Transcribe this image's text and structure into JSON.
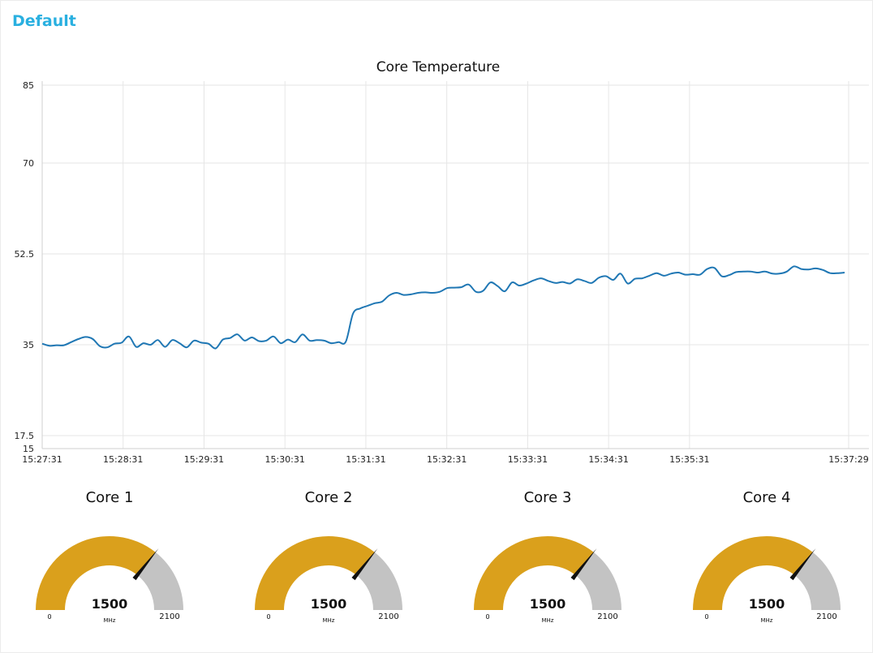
{
  "group": {
    "title": "Default"
  },
  "chart_data": {
    "type": "line",
    "title": "Core Temperature",
    "ylim": [
      15,
      85
    ],
    "yticks": [
      15,
      17.5,
      35,
      52.5,
      70,
      85
    ],
    "xticks": [
      "15:27:31",
      "15:28:31",
      "15:29:31",
      "15:30:31",
      "15:31:31",
      "15:32:31",
      "15:33:31",
      "15:34:31",
      "15:35:31",
      "15:37:29"
    ],
    "x_start": "15:27:31",
    "x_end": "15:37:29",
    "grid": true,
    "color": "#1f77b4",
    "series": [
      {
        "values": [
          35.2,
          34.8,
          34.9,
          34.9,
          35.5,
          36.1,
          36.5,
          36.1,
          34.7,
          34.5,
          35.2,
          35.4,
          36.6,
          34.6,
          35.3,
          35.0,
          35.9,
          34.6,
          35.9,
          35.3,
          34.5,
          35.8,
          35.4,
          35.2,
          34.3,
          36.0,
          36.3,
          37.0,
          35.8,
          36.4,
          35.7,
          35.8,
          36.6,
          35.3,
          36.0,
          35.5,
          37.0,
          35.8,
          35.9,
          35.8,
          35.3,
          35.5,
          35.6,
          41.0,
          42.0,
          42.5,
          43.0,
          43.3,
          44.5,
          45.0,
          44.6,
          44.7,
          45.0,
          45.1,
          45.0,
          45.2,
          45.9,
          46.0,
          46.1,
          46.6,
          45.2,
          45.4,
          47.0,
          46.3,
          45.3,
          47.0,
          46.4,
          46.8,
          47.4,
          47.8,
          47.3,
          46.9,
          47.1,
          46.8,
          47.6,
          47.3,
          46.9,
          47.9,
          48.2,
          47.5,
          48.7,
          46.8,
          47.7,
          47.8,
          48.3,
          48.8,
          48.3,
          48.7,
          48.9,
          48.5,
          48.6,
          48.5,
          49.6,
          49.8,
          48.2,
          48.4,
          49.0,
          49.1,
          49.1,
          48.9,
          49.1,
          48.7,
          48.7,
          49.1,
          50.1,
          49.6,
          49.5,
          49.7,
          49.4,
          48.8,
          48.8,
          48.9
        ]
      }
    ]
  },
  "gauges": [
    {
      "title": "Core 1",
      "value": "1500",
      "unit": "MHz",
      "min": "0",
      "max": "2100",
      "fraction": 0.714
    },
    {
      "title": "Core 2",
      "value": "1500",
      "unit": "MHz",
      "min": "0",
      "max": "2100",
      "fraction": 0.714
    },
    {
      "title": "Core 3",
      "value": "1500",
      "unit": "MHz",
      "min": "0",
      "max": "2100",
      "fraction": 0.714
    },
    {
      "title": "Core 4",
      "value": "1500",
      "unit": "MHz",
      "min": "0",
      "max": "2100",
      "fraction": 0.714
    }
  ],
  "colors": {
    "gauge_fill": "#daa01c",
    "gauge_track": "#c3c3c3",
    "title": "#2ab0e0",
    "needle": "#111111"
  }
}
